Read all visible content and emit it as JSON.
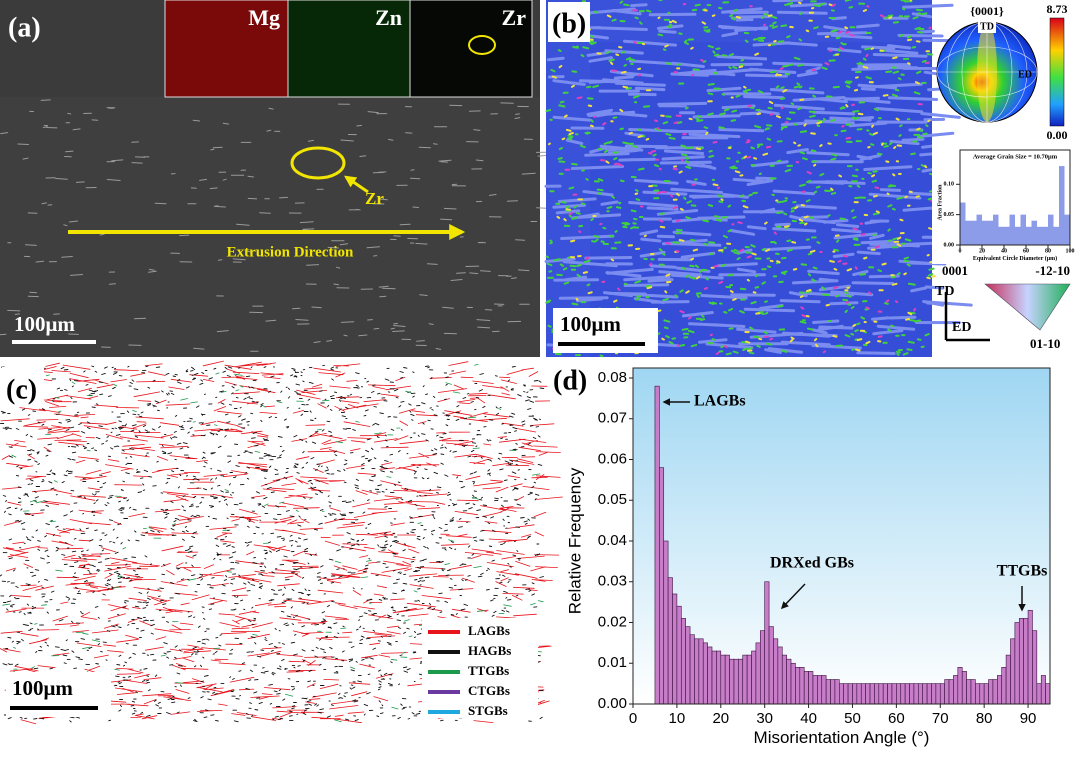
{
  "panels": {
    "a": {
      "label": "(a)",
      "maps": [
        "Mg",
        "Zn",
        "Zr"
      ],
      "particle": "Zr",
      "direction": "Extrusion Direction",
      "scale": "100μm"
    },
    "b": {
      "label": "(b)",
      "pole": "{0001}",
      "pole_td": "TD",
      "pole_ed": "ED",
      "max": "8.73",
      "min": "0.00",
      "ipf": [
        "0001",
        "-12-10",
        "01-10"
      ],
      "axis_td": "TD",
      "axis_ed": "ED",
      "scale": "100μm"
    },
    "c": {
      "label": "(c)",
      "legend": [
        {
          "name": "LAGBs",
          "color": "#e8141c"
        },
        {
          "name": "HAGBs",
          "color": "#111111"
        },
        {
          "name": "TTGBs",
          "color": "#1a9a4a"
        },
        {
          "name": "CTGBs",
          "color": "#6a3aa0"
        },
        {
          "name": "STGBs",
          "color": "#1ea8e0"
        }
      ],
      "scale": "100μm"
    }
  },
  "chart_data": [
    {
      "type": "histogram",
      "title": "Average Grain Size = 10.70μm",
      "x_label": "Equivalent Circle Diameter (μm)",
      "y_label": "Area Fraction",
      "color": "#8c9ce8",
      "bins": [
        0,
        5,
        10,
        15,
        20,
        25,
        30,
        35,
        40,
        45,
        50,
        55,
        60,
        65,
        70,
        75,
        80,
        85,
        90,
        95,
        100
      ],
      "values": [
        0.07,
        0.04,
        0.04,
        0.05,
        0.04,
        0.04,
        0.05,
        0.03,
        0.03,
        0.05,
        0.03,
        0.05,
        0.03,
        0.04,
        0.03,
        0.03,
        0.05,
        0.03,
        0.13,
        0.05
      ],
      "xlim": [
        0,
        100
      ],
      "xticks": [
        0,
        20,
        40,
        60,
        80,
        100
      ],
      "ylim": [
        0,
        0.14
      ],
      "yticks": [
        {
          "value": 0,
          "label": "0.00"
        },
        {
          "value": 0.05,
          "label": "0.05"
        },
        {
          "value": 0.1,
          "label": "0.10"
        }
      ]
    },
    {
      "type": "histogram",
      "label": "(d)",
      "x_label": "Misorientation Angle (°)",
      "y_label": "Relative Frequency",
      "color": "#c77dc8",
      "annotations": [
        "LAGBs",
        "DRXed GBs",
        "TTGBs"
      ],
      "bins": [
        5,
        6,
        7,
        8,
        9,
        10,
        11,
        12,
        13,
        14,
        15,
        16,
        17,
        18,
        19,
        20,
        21,
        22,
        23,
        24,
        25,
        26,
        27,
        28,
        29,
        30,
        31,
        32,
        33,
        34,
        35,
        36,
        37,
        38,
        39,
        40,
        41,
        42,
        43,
        44,
        45,
        46,
        47,
        48,
        49,
        50,
        51,
        52,
        53,
        54,
        55,
        56,
        57,
        58,
        59,
        60,
        61,
        62,
        63,
        64,
        65,
        66,
        67,
        68,
        69,
        70,
        71,
        72,
        73,
        74,
        75,
        76,
        77,
        78,
        79,
        80,
        81,
        82,
        83,
        84,
        85,
        86,
        87,
        88,
        89,
        90,
        91,
        92,
        93,
        94,
        95
      ],
      "values": [
        0.078,
        0.058,
        0.04,
        0.031,
        0.027,
        0.024,
        0.021,
        0.019,
        0.017,
        0.016,
        0.016,
        0.015,
        0.014,
        0.013,
        0.013,
        0.012,
        0.012,
        0.011,
        0.011,
        0.011,
        0.012,
        0.012,
        0.013,
        0.015,
        0.018,
        0.03,
        0.019,
        0.016,
        0.014,
        0.012,
        0.011,
        0.01,
        0.009,
        0.009,
        0.008,
        0.008,
        0.007,
        0.007,
        0.007,
        0.006,
        0.006,
        0.006,
        0.005,
        0.005,
        0.005,
        0.005,
        0.005,
        0.005,
        0.005,
        0.005,
        0.005,
        0.005,
        0.005,
        0.005,
        0.005,
        0.005,
        0.005,
        0.005,
        0.005,
        0.005,
        0.005,
        0.005,
        0.005,
        0.005,
        0.005,
        0.005,
        0.006,
        0.006,
        0.007,
        0.009,
        0.008,
        0.006,
        0.006,
        0.005,
        0.005,
        0.005,
        0.006,
        0.006,
        0.007,
        0.009,
        0.012,
        0.016,
        0.02,
        0.021,
        0.021,
        0.023,
        0.018,
        0.005,
        0.007,
        0.005
      ],
      "xlim": [
        0,
        95
      ],
      "xticks": [
        0,
        10,
        20,
        30,
        40,
        50,
        60,
        70,
        80,
        90
      ],
      "ylim": [
        0,
        0.08
      ],
      "yticks": [
        {
          "value": 0,
          "label": "0.00"
        },
        {
          "value": 0.01,
          "label": "0.01"
        },
        {
          "value": 0.02,
          "label": "0.02"
        },
        {
          "value": 0.03,
          "label": "0.03"
        },
        {
          "value": 0.04,
          "label": "0.04"
        },
        {
          "value": 0.05,
          "label": "0.05"
        },
        {
          "value": 0.06,
          "label": "0.06"
        },
        {
          "value": 0.07,
          "label": "0.07"
        },
        {
          "value": 0.08,
          "label": "0.08"
        }
      ]
    }
  ]
}
